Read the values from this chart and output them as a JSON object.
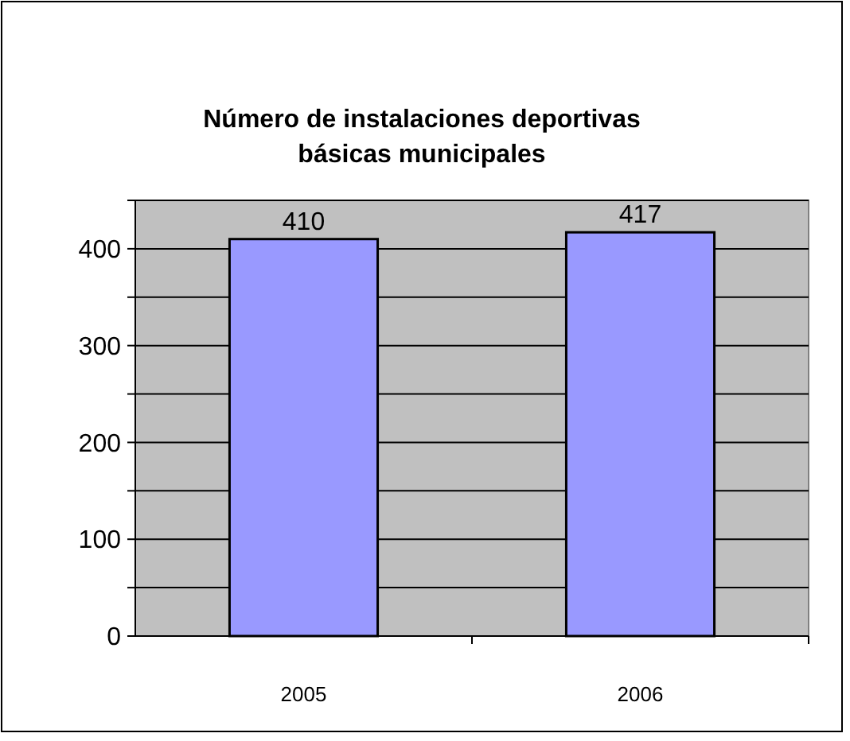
{
  "chart_data": {
    "type": "bar",
    "title": "Número de instalaciones deportivas básicas municipales",
    "categories": [
      "2005",
      "2006"
    ],
    "values": [
      410,
      417
    ],
    "color": "#9999ff",
    "data_labels": true,
    "ylim": [
      0,
      450
    ],
    "yticks": [
      0,
      {
        "value": 50,
        "label": null
      },
      100,
      {
        "value": 150,
        "label": null
      },
      200,
      {
        "value": 250,
        "label": null
      },
      300,
      {
        "value": 350,
        "label": null
      },
      400,
      {
        "value": 450,
        "label": null
      }
    ],
    "grid": "y"
  }
}
